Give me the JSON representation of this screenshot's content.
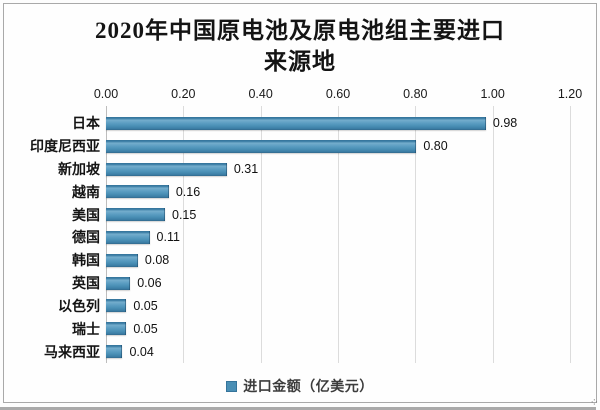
{
  "title": {
    "text": "2020年中国原电池及原电池组主要进口来源地",
    "lines": [
      "2020年中国原电池及原电池组主要进口",
      "来源地"
    ]
  },
  "legend": {
    "label": "进口金额（亿美元）",
    "swatch_color": "#4a8fb5"
  },
  "chart_data": {
    "type": "bar",
    "orientation": "horizontal",
    "title": "2020年中国原电池及原电池组主要进口来源地",
    "categories": [
      "日本",
      "印度尼西亚",
      "新加坡",
      "越南",
      "美国",
      "德国",
      "韩国",
      "英国",
      "以色列",
      "瑞士",
      "马来西亚"
    ],
    "values": [
      0.98,
      0.8,
      0.31,
      0.16,
      0.15,
      0.11,
      0.08,
      0.06,
      0.05,
      0.05,
      0.04
    ],
    "value_labels": [
      "0.98",
      "0.80",
      "0.31",
      "0.16",
      "0.15",
      "0.11",
      "0.08",
      "0.06",
      "0.05",
      "0.05",
      "0.04"
    ],
    "series_name": "进口金额（亿美元）",
    "xlim": [
      0,
      1.2
    ],
    "x_ticks": [
      "0.00",
      "0.20",
      "0.40",
      "0.60",
      "0.80",
      "1.00",
      "1.20"
    ],
    "axis_position": "top",
    "grid": true,
    "legend_position": "bottom",
    "bar_color": "#4a8fb5"
  },
  "colors": {
    "bar": "#4a8fb5",
    "grid": "#dcdcdc",
    "axis_line": "#bdbdbd",
    "frame_border": "#a9a9a9",
    "text": "#141414"
  }
}
